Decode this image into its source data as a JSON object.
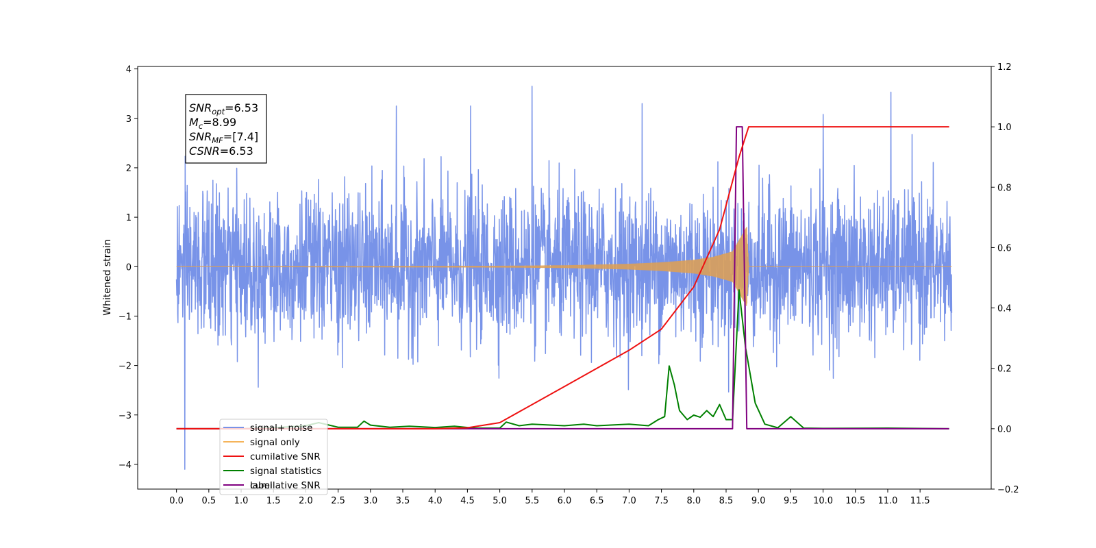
{
  "chart_data": {
    "type": "line",
    "title": "",
    "xlabel": "",
    "ylabel": "Whitened strain",
    "ylabel_right": "",
    "xlim": [
      -0.6,
      12.6
    ],
    "ylim_left": [
      -4.5,
      4.05
    ],
    "ylim_right": [
      -0.2,
      1.2
    ],
    "grid": false,
    "legend_location": "lower-left",
    "x_ticks": [
      0.0,
      0.5,
      1.0,
      1.5,
      2.0,
      2.5,
      3.0,
      3.5,
      4.0,
      4.5,
      5.0,
      5.5,
      6.0,
      6.5,
      7.0,
      7.5,
      8.0,
      8.5,
      9.0,
      9.5,
      10.0,
      10.5,
      11.0,
      11.5
    ],
    "x_tick_labels": [
      "0.0",
      "0.5",
      "1.0",
      "1.5",
      "2.0",
      "2.5",
      "3.0",
      "3.5",
      "4.0",
      "4.5",
      "5.0",
      "5.5",
      "6.0",
      "6.5",
      "7.0",
      "7.5",
      "8.0",
      "8.5",
      "9.0",
      "9.5",
      "10.0",
      "10.5",
      "11.0",
      "11.5"
    ],
    "y_left_ticks": [
      4,
      3,
      2,
      1,
      0,
      -1,
      -2,
      -3,
      -4
    ],
    "y_left_tick_labels": [
      "4",
      "3",
      "2",
      "1",
      "0",
      "−1",
      "−2",
      "−3",
      "−4"
    ],
    "y_right_ticks": [
      1.2,
      1.0,
      0.8,
      0.6,
      0.4,
      0.2,
      0.0,
      -0.2
    ],
    "y_right_tick_labels": [
      "1.2",
      "1.0",
      "0.8",
      "0.6",
      "0.4",
      "0.2",
      "0.0",
      "−0.2"
    ],
    "annotation": {
      "lines": [
        {
          "main": "SNR",
          "sub": "opt",
          "rest": "=6.53"
        },
        {
          "main": "M",
          "sub": "c",
          "rest": "=8.99"
        },
        {
          "main": "SNR",
          "sub": "MF",
          "rest": "=[7.4]"
        },
        {
          "main": "CSNR",
          "sub": "",
          "rest": "=6.53"
        }
      ]
    },
    "noise_series": {
      "name": "signal+ noise",
      "axis": "left",
      "color": "#7893e8",
      "x_range": [
        0.0,
        11.99
      ],
      "approx_sigma": 0.75,
      "approx_min": -4.1,
      "approx_max": 3.65,
      "notable_spikes": [
        [
          0.13,
          -4.1
        ],
        [
          5.5,
          3.65
        ],
        [
          11.05,
          3.53
        ],
        [
          10.0,
          3.08
        ],
        [
          3.4,
          3.25
        ],
        [
          7.2,
          3.3
        ],
        [
          4.55,
          3.25
        ]
      ]
    },
    "signal_series": {
      "name": "signal only",
      "axis": "left",
      "color": "#e0a050",
      "x_range": [
        0.0,
        11.99
      ],
      "chirp_envelope": [
        [
          0,
          0.0
        ],
        [
          5.0,
          0.01
        ],
        [
          6.0,
          0.02
        ],
        [
          7.0,
          0.05
        ],
        [
          7.5,
          0.08
        ],
        [
          8.0,
          0.13
        ],
        [
          8.3,
          0.19
        ],
        [
          8.6,
          0.3
        ],
        [
          8.82,
          0.8
        ],
        [
          8.85,
          0.0
        ],
        [
          11.99,
          0.0
        ]
      ]
    },
    "cumulative_snr": {
      "name": "cumilative SNR",
      "axis": "right",
      "color": "#ee1111",
      "points": [
        [
          0,
          0
        ],
        [
          4.0,
          0.0
        ],
        [
          4.5,
          0.003
        ],
        [
          5.0,
          0.02
        ],
        [
          5.5,
          0.08
        ],
        [
          6.0,
          0.14
        ],
        [
          6.5,
          0.2
        ],
        [
          7.0,
          0.26
        ],
        [
          7.5,
          0.33
        ],
        [
          8.0,
          0.47
        ],
        [
          8.4,
          0.66
        ],
        [
          8.7,
          0.9
        ],
        [
          8.85,
          1.0
        ],
        [
          11.95,
          1.0
        ]
      ]
    },
    "signal_statistics": {
      "name": "signal statistics",
      "axis": "right",
      "color": "#008000",
      "points": [
        [
          0,
          0.0
        ],
        [
          1.0,
          0.0
        ],
        [
          1.5,
          0.003
        ],
        [
          2.0,
          0.01
        ],
        [
          2.2,
          0.02
        ],
        [
          2.5,
          0.005
        ],
        [
          2.8,
          0.005
        ],
        [
          2.9,
          0.025
        ],
        [
          3.0,
          0.012
        ],
        [
          3.3,
          0.005
        ],
        [
          3.6,
          0.008
        ],
        [
          4.0,
          0.004
        ],
        [
          4.3,
          0.008
        ],
        [
          4.6,
          0.002
        ],
        [
          5.0,
          0.002
        ],
        [
          5.1,
          0.022
        ],
        [
          5.3,
          0.01
        ],
        [
          5.5,
          0.015
        ],
        [
          6.0,
          0.01
        ],
        [
          6.3,
          0.015
        ],
        [
          6.5,
          0.01
        ],
        [
          7.0,
          0.015
        ],
        [
          7.3,
          0.01
        ],
        [
          7.45,
          0.03
        ],
        [
          7.55,
          0.04
        ],
        [
          7.62,
          0.208
        ],
        [
          7.7,
          0.145
        ],
        [
          7.78,
          0.06
        ],
        [
          7.9,
          0.03
        ],
        [
          8.0,
          0.045
        ],
        [
          8.1,
          0.038
        ],
        [
          8.2,
          0.06
        ],
        [
          8.3,
          0.04
        ],
        [
          8.4,
          0.08
        ],
        [
          8.5,
          0.03
        ],
        [
          8.6,
          0.03
        ],
        [
          8.7,
          0.46
        ],
        [
          8.8,
          0.27
        ],
        [
          8.95,
          0.085
        ],
        [
          9.1,
          0.015
        ],
        [
          9.3,
          0.003
        ],
        [
          9.5,
          0.04
        ],
        [
          9.7,
          0.002
        ],
        [
          10.0,
          0.001
        ],
        [
          11.0,
          0.002
        ],
        [
          11.95,
          0.0
        ]
      ]
    },
    "label_series": {
      "name": "label",
      "axis": "right",
      "color": "#800080",
      "points": [
        [
          0,
          0.0
        ],
        [
          8.6,
          0.0
        ],
        [
          8.66,
          1.0
        ],
        [
          8.75,
          1.0
        ],
        [
          8.82,
          0.0
        ],
        [
          11.95,
          0.0
        ]
      ]
    },
    "legend": [
      {
        "label": "signal+ noise",
        "color": "#7893e8"
      },
      {
        "label": "signal only",
        "color": "#f5b45a"
      },
      {
        "label": "cumilative SNR",
        "color": "#ee1111"
      },
      {
        "label": "signal statistics",
        "color": "#008000"
      },
      {
        "label": "label",
        "color": "#800080"
      }
    ],
    "legend_ghost_text": "cumilative SNR"
  }
}
